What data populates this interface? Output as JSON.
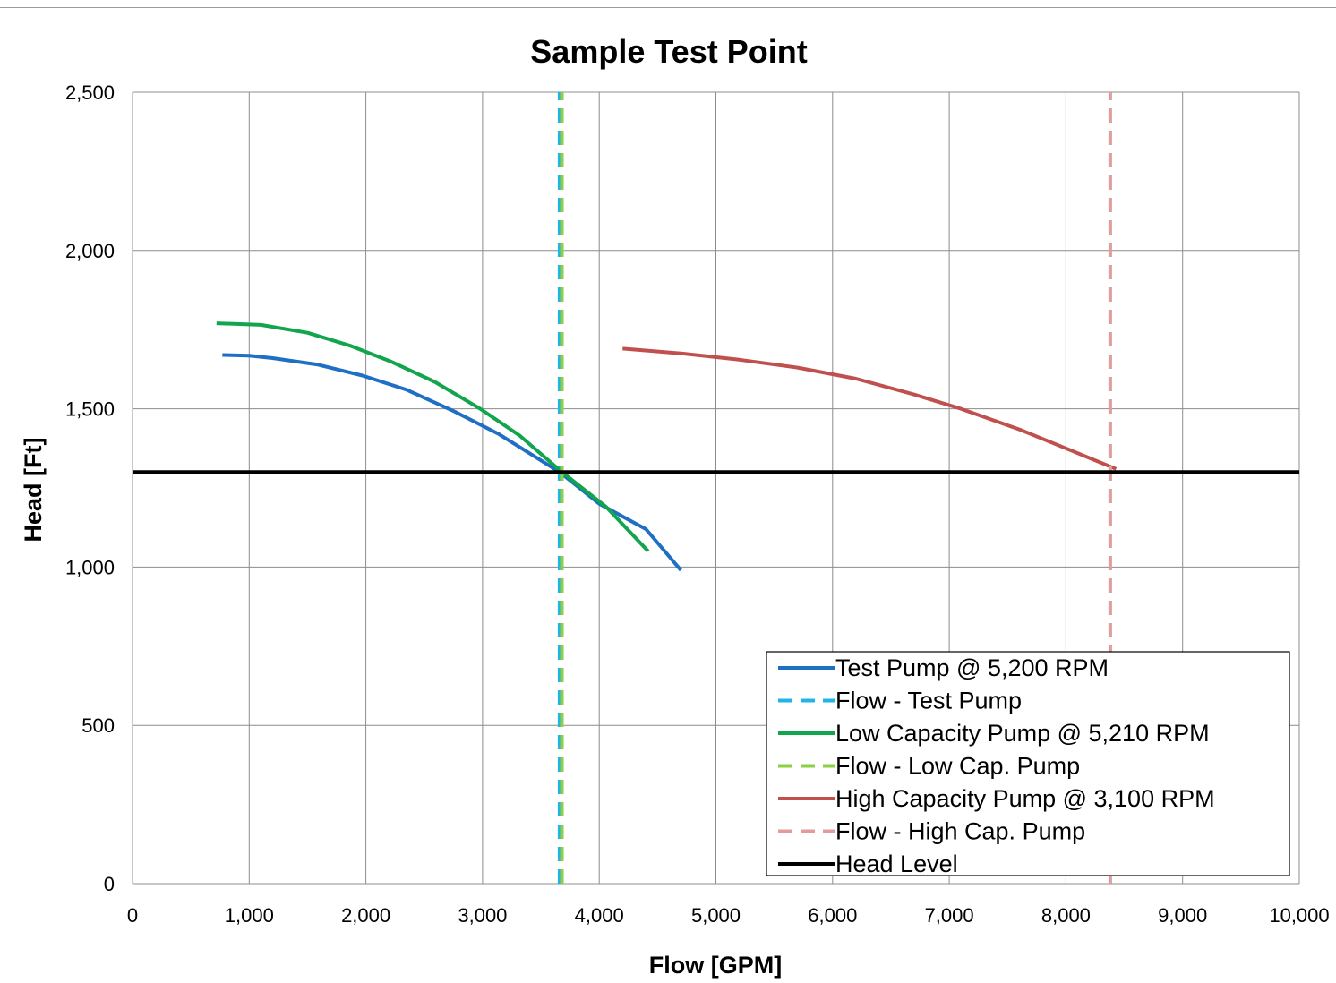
{
  "chart_data": {
    "type": "line",
    "title": "Sample Test Point",
    "xlabel": "Flow [GPM]",
    "ylabel": "Head [Ft]",
    "xlim": [
      0,
      10000
    ],
    "ylim": [
      0,
      2500
    ],
    "xticks": [
      0,
      1000,
      2000,
      3000,
      4000,
      5000,
      6000,
      7000,
      8000,
      9000,
      10000
    ],
    "yticks": [
      0,
      500,
      1000,
      1500,
      2000,
      2500
    ],
    "xtick_labels": [
      "0",
      "1,000",
      "2,000",
      "3,000",
      "4,000",
      "5,000",
      "6,000",
      "7,000",
      "8,000",
      "9,000",
      "10,000"
    ],
    "ytick_labels": [
      "0",
      "500",
      "1,000",
      "1,500",
      "2,000",
      "2,500"
    ],
    "grid": true,
    "legend_position": "bottom-right",
    "series": [
      {
        "name": "Test Pump @ 5,200 RPM",
        "color": "#1f6fc4",
        "style": "solid",
        "x": [
          770,
          1000,
          1200,
          1580,
          1970,
          2350,
          2740,
          3140,
          3660,
          4000,
          4400,
          4700
        ],
        "y": [
          1670,
          1668,
          1660,
          1640,
          1605,
          1560,
          1495,
          1420,
          1300,
          1200,
          1120,
          990
        ]
      },
      {
        "name": "Flow - Test Pump",
        "color": "#1fb5e6",
        "style": "dashed",
        "x": [
          3660,
          3660
        ],
        "y": [
          0,
          2500
        ]
      },
      {
        "name": "Low Capacity Pump @ 5,210 RPM",
        "color": "#12a54e",
        "style": "solid",
        "x": [
          720,
          1100,
          1500,
          1860,
          2210,
          2590,
          2980,
          3320,
          3680,
          4060,
          4420
        ],
        "y": [
          1770,
          1765,
          1740,
          1700,
          1650,
          1585,
          1500,
          1415,
          1300,
          1190,
          1050
        ]
      },
      {
        "name": "Flow - Low Cap. Pump",
        "color": "#8dcf45",
        "style": "dashed",
        "x": [
          3680,
          3680
        ],
        "y": [
          0,
          2500
        ]
      },
      {
        "name": "High Capacity Pump @ 3,100 RPM",
        "color": "#c0504d",
        "style": "solid",
        "x": [
          4200,
          4700,
          5200,
          5700,
          6200,
          6700,
          7100,
          7600,
          8000,
          8430
        ],
        "y": [
          1690,
          1675,
          1655,
          1630,
          1595,
          1545,
          1500,
          1435,
          1375,
          1310
        ]
      },
      {
        "name": "Flow - High Cap. Pump",
        "color": "#e29c9b",
        "style": "dashed",
        "x": [
          8380,
          8380
        ],
        "y": [
          0,
          2500
        ]
      },
      {
        "name": "Head Level",
        "color": "#000000",
        "style": "solid",
        "x": [
          0,
          10000
        ],
        "y": [
          1300,
          1300
        ]
      }
    ]
  }
}
